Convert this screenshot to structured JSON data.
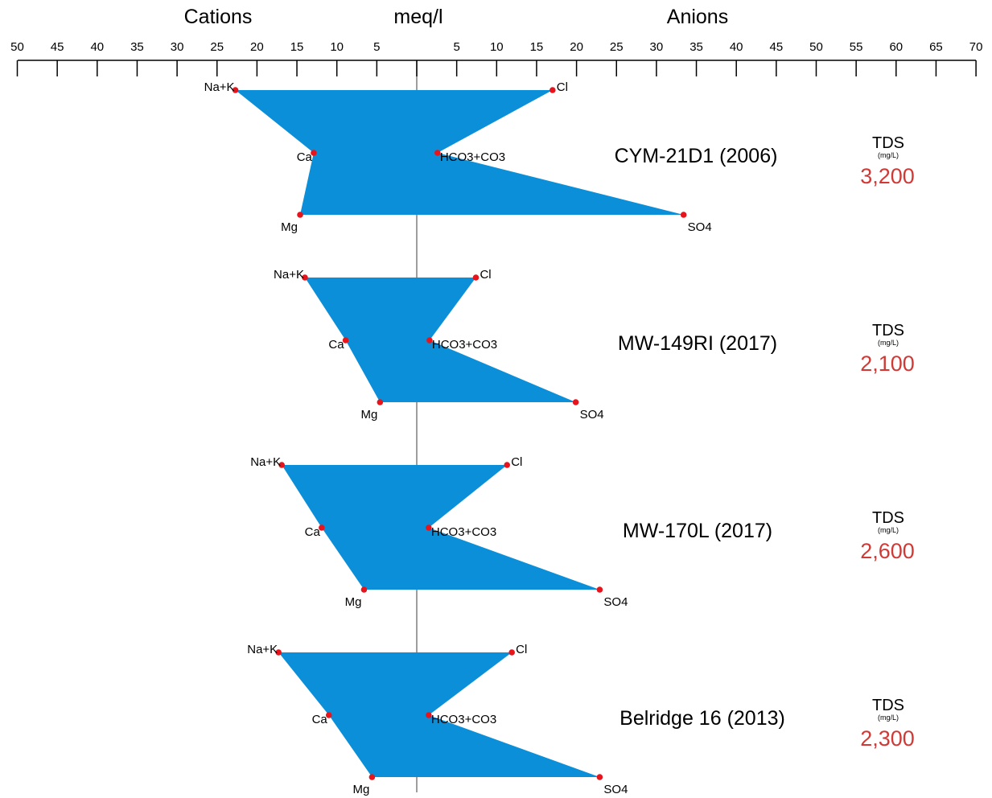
{
  "chart_data": {
    "type": "stiff",
    "header": {
      "cations": "Cations",
      "units": "meq/l",
      "anions": "Anions"
    },
    "axis": {
      "cation_ticks": [
        "50",
        "45",
        "40",
        "35",
        "30",
        "25",
        "20",
        "15",
        "10",
        "5"
      ],
      "anion_ticks": [
        "5",
        "10",
        "15",
        "20",
        "25",
        "30",
        "35",
        "40",
        "45",
        "50",
        "55",
        "60",
        "65",
        "70"
      ],
      "cation_range": [
        0,
        50
      ],
      "anion_range": [
        0,
        70
      ]
    },
    "ion_labels": {
      "cations": [
        "Na+K",
        "Ca",
        "Mg"
      ],
      "anions": [
        "Cl",
        "HCO3+CO3",
        "SO4"
      ]
    },
    "tds_heading": "TDS",
    "tds_unit": "(mg/L)",
    "colors": {
      "fill": "#0b8fd8",
      "point": "#e8141c",
      "tds": "#d03a36",
      "axis": "#000000",
      "center_line": "#7f7f7f"
    },
    "samples": [
      {
        "label": "CYM-21D1  (2006)",
        "tds": "3,200",
        "cations": {
          "Na+K": 22.7,
          "Ca": 12.9,
          "Mg": 14.6
        },
        "anions": {
          "Cl": 17.0,
          "HCO3+CO3": 2.6,
          "SO4": 33.4
        }
      },
      {
        "label": "MW-149RI  (2017)",
        "tds": "2,100",
        "cations": {
          "Na+K": 14.0,
          "Ca": 8.9,
          "Mg": 4.6
        },
        "anions": {
          "Cl": 7.4,
          "HCO3+CO3": 1.6,
          "SO4": 19.9
        }
      },
      {
        "label": "MW-170L  (2017)",
        "tds": "2,600",
        "cations": {
          "Na+K": 16.9,
          "Ca": 11.9,
          "Mg": 6.6
        },
        "anions": {
          "Cl": 11.3,
          "HCO3+CO3": 1.5,
          "SO4": 22.9
        }
      },
      {
        "label": "Belridge 16  (2013)",
        "tds": "2,300",
        "cations": {
          "Na+K": 17.3,
          "Ca": 11.0,
          "Mg": 5.6
        },
        "anions": {
          "Cl": 11.9,
          "HCO3+CO3": 1.5,
          "SO4": 22.9
        }
      }
    ]
  }
}
